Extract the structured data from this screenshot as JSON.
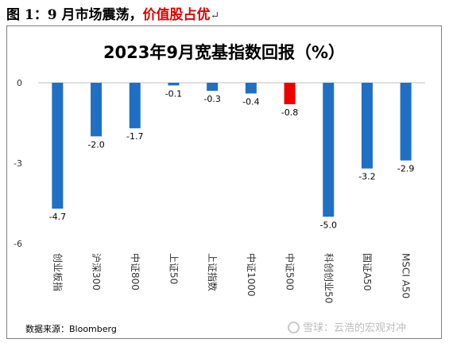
{
  "caption": {
    "prefix": "图 1：9 月市场震荡，",
    "highlight": "价值股占优",
    "return_mark": "↵"
  },
  "source": "数据来源：Bloomberg",
  "watermark": "雪球：云浩的宏观对冲",
  "colors": {
    "bar": "#1f6fc5",
    "highlight_bar": "#ee0000"
  },
  "chart_data": {
    "type": "bar",
    "title": "2023年9月宽基指数回报（%）",
    "categories": [
      "创业板指",
      "沪深300",
      "中证800",
      "上证50",
      "上证指数",
      "中证1000",
      "中证500",
      "科创创业50",
      "国证A50",
      "MSCI A50"
    ],
    "values": [
      -4.7,
      -2.0,
      -1.7,
      -0.1,
      -0.3,
      -0.4,
      -0.8,
      -5.0,
      -3.2,
      -2.9
    ],
    "data_labels": [
      "-4.7",
      "-2.0",
      "-1.7",
      "-0.1",
      "-0.3",
      "-0.4",
      "-0.8",
      "-5.0",
      "-3.2",
      "-2.9"
    ],
    "highlight_index": 6,
    "ylim": [
      -6,
      0
    ],
    "yticks": [
      "0",
      "-3",
      "-6"
    ],
    "grid": false,
    "legend": "none"
  }
}
